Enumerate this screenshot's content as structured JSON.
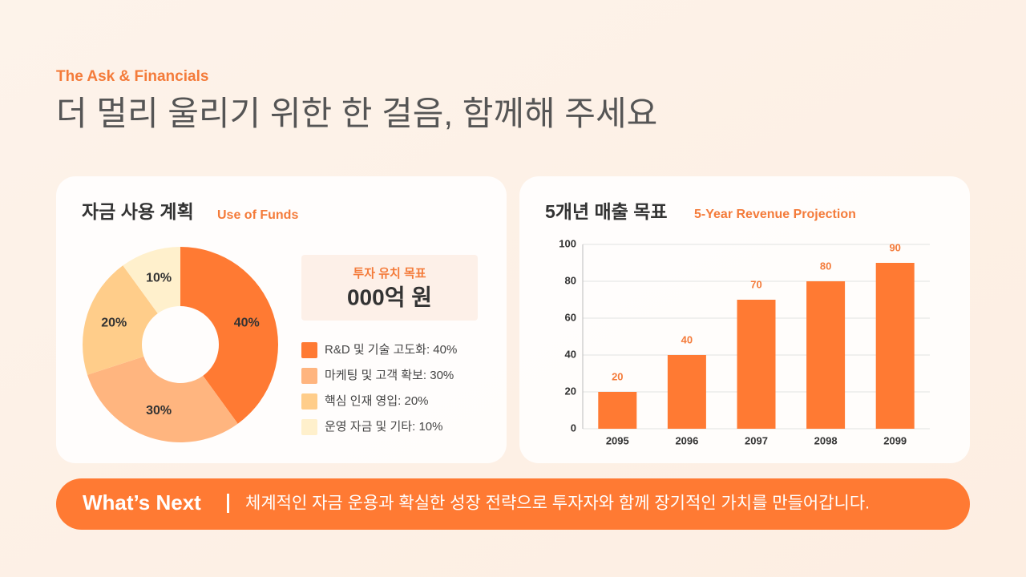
{
  "header": {
    "kicker": "The Ask & Financials",
    "title": "더 멀리 울리기 위한 한 걸음, 함께해 주세요"
  },
  "target": {
    "label": "투자 유치 목표",
    "amount": "000억 원"
  },
  "chart_data": [
    {
      "type": "pie",
      "title": "자금 사용 계획",
      "subtitle": "Use of Funds",
      "categories": [
        "R&D 및 기술 고도화: 40%",
        "마케팅 및 고객 확보: 30%",
        "핵심 인재 영입: 20%",
        "운영 자금 및 기타: 10%"
      ],
      "values": [
        40,
        30,
        20,
        10
      ],
      "value_labels": [
        "40%",
        "30%",
        "20%",
        "10%"
      ],
      "colors": [
        "#ff7a33",
        "#ffb57f",
        "#ffcd8a",
        "#fff0cc"
      ]
    },
    {
      "type": "bar",
      "title": "5개년 매출 목표",
      "subtitle": "5-Year Revenue Projection",
      "categories": [
        "2095",
        "2096",
        "2097",
        "2098",
        "2099"
      ],
      "values": [
        20,
        40,
        70,
        80,
        90
      ],
      "color": "#ff7a33",
      "ylim": [
        0,
        100
      ],
      "yticks": [
        0,
        20,
        40,
        60,
        80,
        100
      ],
      "grid": true
    }
  ],
  "footer": {
    "label": "What’s Next",
    "text": "체계적인 자금 운용과 확실한 성장 전략으로 투자자와 함께 장기적인 가치를 만들어갑니다."
  }
}
